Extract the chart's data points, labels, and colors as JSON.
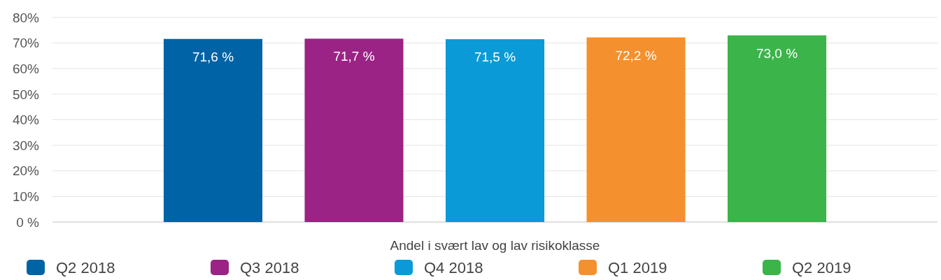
{
  "chart_data": {
    "type": "bar",
    "categories": [
      "Andel i svært lav og lav risikoklasse"
    ],
    "series": [
      {
        "name": "Q2 2018",
        "color": "#0063a6",
        "values": [
          71.6
        ],
        "value_labels": [
          "71,6 %"
        ]
      },
      {
        "name": "Q3 2018",
        "color": "#9b2385",
        "values": [
          71.7
        ],
        "value_labels": [
          "71,7 %"
        ]
      },
      {
        "name": "Q4 2018",
        "color": "#0a9ad7",
        "values": [
          71.5
        ],
        "value_labels": [
          "71,5 %"
        ]
      },
      {
        "name": "Q1 2019",
        "color": "#f5902f",
        "values": [
          72.2
        ],
        "value_labels": [
          "72,2 %"
        ]
      },
      {
        "name": "Q2 2019",
        "color": "#3bb44a",
        "values": [
          73.0
        ],
        "value_labels": [
          "73,0 %"
        ]
      }
    ],
    "ylim": [
      0,
      80
    ],
    "yticks": [
      {
        "value": 0,
        "label": "0 %"
      },
      {
        "value": 10,
        "label": "10%"
      },
      {
        "value": 20,
        "label": "20%"
      },
      {
        "value": 30,
        "label": "30%"
      },
      {
        "value": 40,
        "label": "40%"
      },
      {
        "value": 50,
        "label": "50%"
      },
      {
        "value": 60,
        "label": "60%"
      },
      {
        "value": 70,
        "label": "70%"
      },
      {
        "value": 80,
        "label": "80%"
      }
    ],
    "grid": "y",
    "legend": "bottom"
  }
}
